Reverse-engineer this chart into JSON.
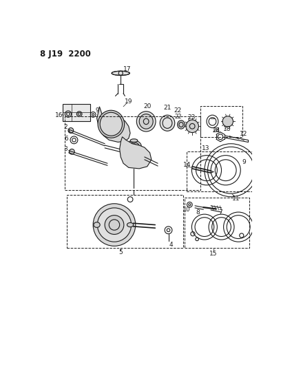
{
  "title": "8 J19  2200",
  "bg_color": "#ffffff",
  "lc": "#1a1a1a",
  "fig_width": 4.08,
  "fig_height": 5.33,
  "dpi": 100
}
